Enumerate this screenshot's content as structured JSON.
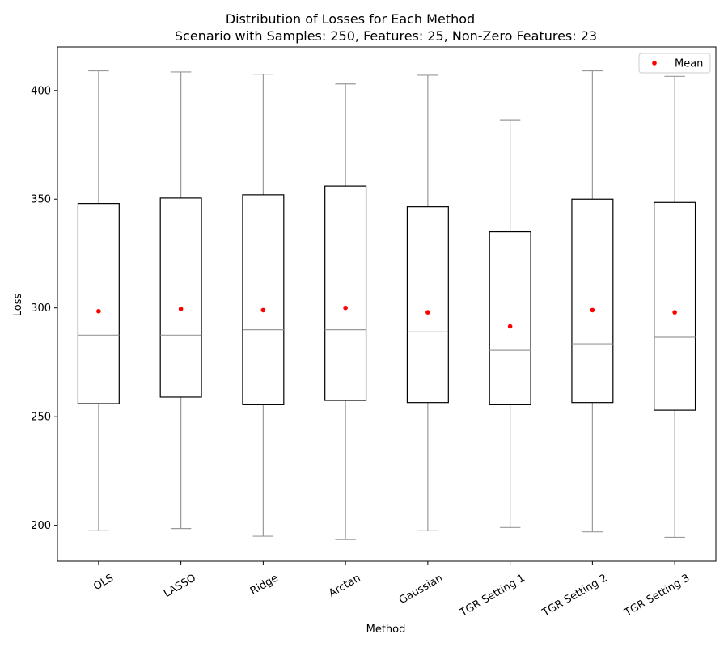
{
  "chart_data": {
    "type": "boxplot",
    "title": "Distribution of Losses for Each Method",
    "subtitle": "Scenario with Samples: 250, Features: 25, Non-Zero Features: 23",
    "xlabel": "Method",
    "ylabel": "Loss",
    "ylim": [
      183.5,
      420
    ],
    "yticks": [
      200,
      250,
      300,
      350,
      400
    ],
    "grid": false,
    "legend": {
      "placement": "top-right",
      "entries": [
        "Mean"
      ]
    },
    "colors": {
      "box_edge": "#000000",
      "whisker": "#999999",
      "median": "#999999",
      "mean_marker": "#ff0000"
    },
    "categories": [
      "OLS",
      "LASSO",
      "Ridge",
      "Arctan",
      "Gaussian",
      "TGR Setting 1",
      "TGR Setting 2",
      "TGR Setting 3"
    ],
    "series": [
      {
        "category": "OLS",
        "whislo": 197.5,
        "q1": 256.0,
        "median": 287.5,
        "q3": 348.0,
        "whishi": 409.0,
        "mean": 298.5
      },
      {
        "category": "LASSO",
        "whislo": 198.5,
        "q1": 259.0,
        "median": 287.5,
        "q3": 350.5,
        "whishi": 408.5,
        "mean": 299.5
      },
      {
        "category": "Ridge",
        "whislo": 195.0,
        "q1": 255.5,
        "median": 290.0,
        "q3": 352.0,
        "whishi": 407.5,
        "mean": 299.0
      },
      {
        "category": "Arctan",
        "whislo": 193.5,
        "q1": 257.5,
        "median": 290.0,
        "q3": 356.0,
        "whishi": 403.0,
        "mean": 300.0
      },
      {
        "category": "Gaussian",
        "whislo": 197.5,
        "q1": 256.5,
        "median": 289.0,
        "q3": 346.5,
        "whishi": 407.0,
        "mean": 298.0
      },
      {
        "category": "TGR Setting 1",
        "whislo": 199.0,
        "q1": 255.5,
        "median": 280.5,
        "q3": 335.0,
        "whishi": 386.5,
        "mean": 291.5
      },
      {
        "category": "TGR Setting 2",
        "whislo": 197.0,
        "q1": 256.5,
        "median": 283.5,
        "q3": 350.0,
        "whishi": 409.0,
        "mean": 299.0
      },
      {
        "category": "TGR Setting 3",
        "whislo": 194.5,
        "q1": 253.0,
        "median": 286.5,
        "q3": 348.5,
        "whishi": 406.5,
        "mean": 298.0
      }
    ]
  }
}
